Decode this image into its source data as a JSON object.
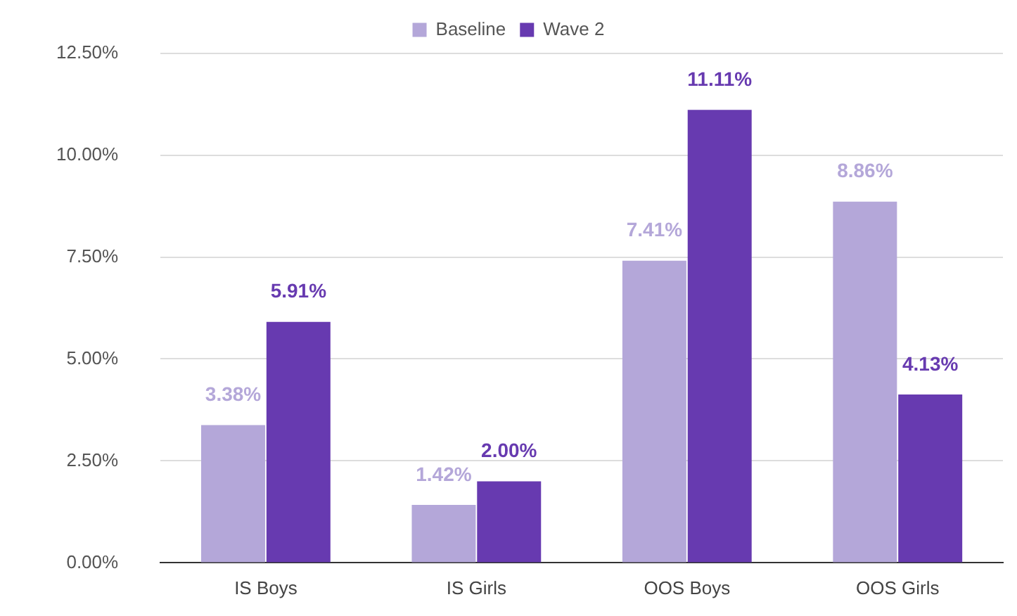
{
  "chart_data": {
    "type": "bar",
    "categories": [
      "IS Boys",
      "IS Girls",
      "OOS Boys",
      "OOS Girls"
    ],
    "series": [
      {
        "name": "Baseline",
        "color": "#b4a7d9",
        "values": [
          3.38,
          1.42,
          7.41,
          8.86
        ],
        "value_labels": [
          "3.38%",
          "1.42%",
          "7.41%",
          "8.86%"
        ]
      },
      {
        "name": "Wave 2",
        "color": "#673ab0",
        "values": [
          5.91,
          2.0,
          11.11,
          4.13
        ],
        "value_labels": [
          "5.91%",
          "2.00%",
          "11.11%",
          "4.13%"
        ]
      }
    ],
    "ylim": [
      0,
      12.5
    ],
    "yticks": [
      {
        "value": 0,
        "label": "0.00%"
      },
      {
        "value": 2.5,
        "label": "2.50%"
      },
      {
        "value": 5,
        "label": "5.00%"
      },
      {
        "value": 7.5,
        "label": "7.50%"
      },
      {
        "value": 10,
        "label": "10.00%"
      },
      {
        "value": 12.5,
        "label": "12.50%"
      }
    ],
    "grid": "y",
    "legend": "top"
  }
}
